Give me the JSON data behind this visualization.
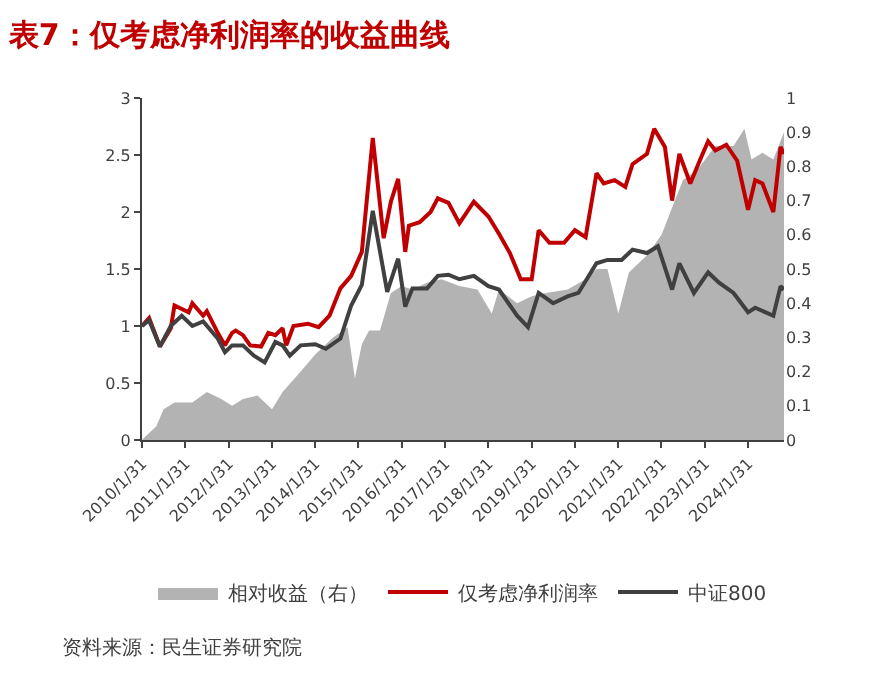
{
  "chart_data": {
    "type": "line",
    "title": "表7：仅考虑净利润率的收益曲线",
    "annotations": [
      "资料来源：民生证券研究院"
    ],
    "xlim": [
      "2010-01-31",
      "2024-11-30"
    ],
    "xticks": [
      {
        "value": "2010-01-31",
        "label": "2010/1/31"
      },
      {
        "value": "2011-01-31",
        "label": "2011/1/31"
      },
      {
        "value": "2012-01-31",
        "label": "2012/1/31"
      },
      {
        "value": "2013-01-31",
        "label": "2013/1/31"
      },
      {
        "value": "2014-01-31",
        "label": "2014/1/31"
      },
      {
        "value": "2015-01-31",
        "label": "2015/1/31"
      },
      {
        "value": "2016-01-31",
        "label": "2016/1/31"
      },
      {
        "value": "2017-01-31",
        "label": "2017/1/31"
      },
      {
        "value": "2018-01-31",
        "label": "2018/1/31"
      },
      {
        "value": "2019-01-31",
        "label": "2019/1/31"
      },
      {
        "value": "2020-01-31",
        "label": "2020/1/31"
      },
      {
        "value": "2021-01-31",
        "label": "2021/1/31"
      },
      {
        "value": "2022-01-31",
        "label": "2022/1/31"
      },
      {
        "value": "2023-01-31",
        "label": "2023/1/31"
      },
      {
        "value": "2024-01-31",
        "label": "2024/1/31"
      }
    ],
    "ylim": [
      0,
      3
    ],
    "yticks": [
      0,
      0.5,
      1,
      1.5,
      2,
      2.5,
      3
    ],
    "y2lim": [
      0,
      1
    ],
    "y2ticks": [
      0,
      0.1,
      0.2,
      0.3,
      0.4,
      0.5,
      0.6,
      0.7,
      0.8,
      0.9,
      1
    ],
    "legend": "bottom",
    "series": [
      {
        "name": "相对收益（右）",
        "type": "area",
        "axis": "y2",
        "color": "#b3b3b3",
        "x": [
          "2010-01-31",
          "2010-03",
          "2010-06",
          "2010-08",
          "2010-11",
          "2011-02",
          "2011-04",
          "2011-08",
          "2011-12",
          "2012-03",
          "2012-06",
          "2012-10",
          "2013-02",
          "2013-05",
          "2013-10",
          "2014-02",
          "2014-07",
          "2014-11",
          "2015-01",
          "2015-03",
          "2015-05",
          "2015-08",
          "2015-11",
          "2016-02",
          "2016-05",
          "2016-09",
          "2017-01",
          "2017-06",
          "2017-11",
          "2018-03",
          "2018-05",
          "2018-10",
          "2019-02",
          "2019-06",
          "2019-12",
          "2020-05",
          "2020-08",
          "2020-11",
          "2021-02",
          "2021-05",
          "2021-10",
          "2022-02",
          "2022-05",
          "2022-08",
          "2022-12",
          "2023-05",
          "2023-10",
          "2024-01",
          "2024-03",
          "2024-06",
          "2024-09",
          "2024-11-30"
        ],
        "values": [
          0,
          0.01,
          0.04,
          0.09,
          0.11,
          0.11,
          0.11,
          0.14,
          0.12,
          0.1,
          0.12,
          0.13,
          0.09,
          0.14,
          0.2,
          0.25,
          0.3,
          0.33,
          0.18,
          0.28,
          0.32,
          0.32,
          0.43,
          0.45,
          0.44,
          0.46,
          0.47,
          0.45,
          0.44,
          0.37,
          0.44,
          0.4,
          0.42,
          0.43,
          0.44,
          0.47,
          0.5,
          0.5,
          0.37,
          0.49,
          0.54,
          0.6,
          0.68,
          0.76,
          0.79,
          0.86,
          0.86,
          0.91,
          0.82,
          0.84,
          0.82,
          0.9
        ]
      },
      {
        "name": "仅考虑净利润率",
        "color": "#c00000",
        "x": [
          "2010-01-31",
          "2010-04",
          "2010-07",
          "2010-10",
          "2010-11",
          "2011-03",
          "2011-04",
          "2011-07",
          "2011-08",
          "2011-11",
          "2012-01",
          "2012-03",
          "2012-04",
          "2012-06",
          "2012-08",
          "2012-11",
          "2013-01",
          "2013-03",
          "2013-05",
          "2013-06",
          "2013-08",
          "2013-12",
          "2014-03",
          "2014-06",
          "2014-09",
          "2014-12",
          "2015-03",
          "2015-06",
          "2015-09",
          "2015-11",
          "2016-01",
          "2016-03",
          "2016-04",
          "2016-07",
          "2016-10",
          "2016-12",
          "2017-03",
          "2017-06",
          "2017-10",
          "2018-02",
          "2018-05",
          "2018-08",
          "2018-11",
          "2019-02",
          "2019-04",
          "2019-07",
          "2019-11",
          "2020-02",
          "2020-05",
          "2020-08",
          "2020-10",
          "2021-01",
          "2021-04",
          "2021-06",
          "2021-10",
          "2021-12",
          "2022-03",
          "2022-05",
          "2022-07",
          "2022-10",
          "2023-01",
          "2023-03",
          "2023-05",
          "2023-08",
          "2023-11",
          "2024-02",
          "2024-04",
          "2024-06",
          "2024-09",
          "2024-11",
          "2024-11-30"
        ],
        "values": [
          1.0,
          1.07,
          0.82,
          0.98,
          1.18,
          1.12,
          1.2,
          1.09,
          1.13,
          0.94,
          0.83,
          0.94,
          0.96,
          0.92,
          0.83,
          0.82,
          0.94,
          0.92,
          0.98,
          0.83,
          1.0,
          1.02,
          0.99,
          1.09,
          1.33,
          1.44,
          1.65,
          2.65,
          1.77,
          2.09,
          2.29,
          1.65,
          1.88,
          1.91,
          2.0,
          2.12,
          2.08,
          1.9,
          2.09,
          1.96,
          1.81,
          1.64,
          1.41,
          1.41,
          1.84,
          1.73,
          1.73,
          1.84,
          1.78,
          2.34,
          2.25,
          2.28,
          2.22,
          2.42,
          2.51,
          2.73,
          2.57,
          2.1,
          2.51,
          2.25,
          2.48,
          2.62,
          2.54,
          2.59,
          2.45,
          2.02,
          2.28,
          2.25,
          2.0,
          2.57,
          2.51
        ]
      },
      {
        "name": "中证800",
        "color": "#404040",
        "x": [
          "2010-01-31",
          "2010-04",
          "2010-07",
          "2010-10",
          "2011-01",
          "2011-04",
          "2011-07",
          "2011-11",
          "2012-01",
          "2012-03",
          "2012-06",
          "2012-09",
          "2012-12",
          "2013-03",
          "2013-05",
          "2013-07",
          "2013-10",
          "2014-02",
          "2014-05",
          "2014-09",
          "2014-12",
          "2015-03",
          "2015-06",
          "2015-10",
          "2016-01",
          "2016-03",
          "2016-05",
          "2016-09",
          "2016-12",
          "2017-03",
          "2017-06",
          "2017-10",
          "2018-02",
          "2018-05",
          "2018-10",
          "2019-01",
          "2019-04",
          "2019-08",
          "2019-12",
          "2020-03",
          "2020-08",
          "2020-11",
          "2021-03",
          "2021-06",
          "2021-10",
          "2022-01",
          "2022-05",
          "2022-07",
          "2022-11",
          "2023-03",
          "2023-06",
          "2023-10",
          "2024-02",
          "2024-04",
          "2024-09",
          "2024-11",
          "2024-11-30"
        ],
        "values": [
          1.0,
          1.05,
          0.82,
          1.0,
          1.09,
          1.0,
          1.04,
          0.89,
          0.77,
          0.83,
          0.83,
          0.74,
          0.68,
          0.86,
          0.83,
          0.74,
          0.83,
          0.84,
          0.8,
          0.89,
          1.18,
          1.36,
          2.01,
          1.3,
          1.59,
          1.17,
          1.33,
          1.33,
          1.44,
          1.45,
          1.41,
          1.44,
          1.35,
          1.32,
          1.09,
          0.99,
          1.29,
          1.2,
          1.26,
          1.29,
          1.55,
          1.58,
          1.58,
          1.67,
          1.64,
          1.7,
          1.32,
          1.55,
          1.29,
          1.47,
          1.38,
          1.29,
          1.12,
          1.16,
          1.09,
          1.35,
          1.32
        ]
      }
    ]
  }
}
